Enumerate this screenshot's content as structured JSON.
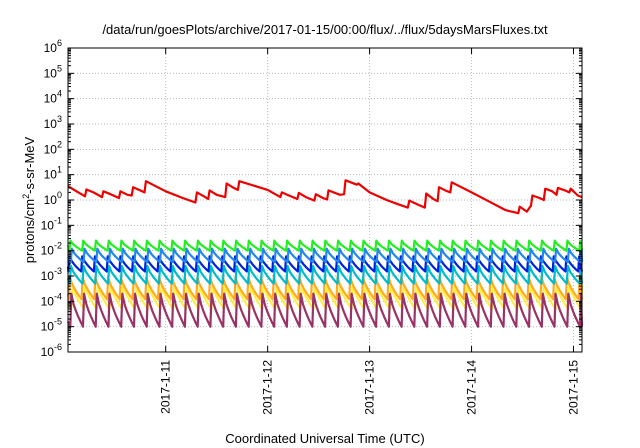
{
  "chart_data": {
    "type": "line",
    "title": "/data/run/goesPlots/archive/2017-01-15/00:00/flux/../flux/5daysMarsFluxes.txt",
    "xlabel": "Coordinated Universal Time (UTC)",
    "ylabel_main": "protons/cm",
    "ylabel_sup": "2",
    "ylabel_rest": "-s-sr-MeV",
    "yscale": "log",
    "ylim_exp": [
      -6,
      6
    ],
    "xlim": [
      "2017-01-10T01:00",
      "2017-01-15T02:00"
    ],
    "grid": true,
    "legend": "none",
    "ytick_base": "10",
    "yticks_exp": [
      "-6",
      "-5",
      "-4",
      "-3",
      "-2",
      "-1",
      "0",
      "1",
      "2",
      "3",
      "4",
      "5",
      "6"
    ],
    "xticks": [
      {
        "date": "2017-01-11T00:00",
        "label": "2017-1-11"
      },
      {
        "date": "2017-01-12T00:00",
        "label": "2017-1-12"
      },
      {
        "date": "2017-01-13T00:00",
        "label": "2017-1-13"
      },
      {
        "date": "2017-01-14T00:00",
        "label": "2017-1-14"
      },
      {
        "date": "2017-01-15T00:00",
        "label": "2017-1-15"
      }
    ],
    "sawtooth_period_hours": 3,
    "series": [
      {
        "color": "#ee0000",
        "points": [
          [
            "2017-01-10T01:00",
            3.5
          ],
          [
            "2017-01-10T03:00",
            2.2
          ],
          [
            "2017-01-10T05:00",
            1.4
          ],
          [
            "2017-01-10T05:20",
            2.6
          ],
          [
            "2017-01-10T07:00",
            2.0
          ],
          [
            "2017-01-10T09:00",
            1.3
          ],
          [
            "2017-01-10T09:20",
            2.2
          ],
          [
            "2017-01-10T11:00",
            1.7
          ],
          [
            "2017-01-10T13:00",
            1.2
          ],
          [
            "2017-01-10T13:20",
            2.2
          ],
          [
            "2017-01-10T15:00",
            1.6
          ],
          [
            "2017-01-10T16:00",
            1.5
          ],
          [
            "2017-01-10T16:20",
            3.2
          ],
          [
            "2017-01-10T18:00",
            2.4
          ],
          [
            "2017-01-10T19:00",
            2.0
          ],
          [
            "2017-01-10T19:20",
            5.5
          ],
          [
            "2017-01-11T00:00",
            2.2
          ],
          [
            "2017-01-11T04:00",
            1.2
          ],
          [
            "2017-01-11T07:00",
            0.8
          ],
          [
            "2017-01-11T07:20",
            2.0
          ],
          [
            "2017-01-11T09:00",
            1.4
          ],
          [
            "2017-01-11T10:00",
            1.1
          ],
          [
            "2017-01-11T10:20",
            2.4
          ],
          [
            "2017-01-11T12:00",
            1.6
          ],
          [
            "2017-01-11T14:00",
            1.3
          ],
          [
            "2017-01-11T14:20",
            4.5
          ],
          [
            "2017-01-11T16:00",
            3.0
          ],
          [
            "2017-01-11T17:00",
            2.5
          ],
          [
            "2017-01-11T17:20",
            5.5
          ],
          [
            "2017-01-12T00:00",
            2.5
          ],
          [
            "2017-01-12T03:00",
            1.3
          ],
          [
            "2017-01-12T03:20",
            2.0
          ],
          [
            "2017-01-12T05:00",
            1.5
          ],
          [
            "2017-01-12T07:00",
            1.1
          ],
          [
            "2017-01-12T07:20",
            1.9
          ],
          [
            "2017-01-12T09:00",
            1.3
          ],
          [
            "2017-01-12T11:00",
            0.95
          ],
          [
            "2017-01-12T11:20",
            1.7
          ],
          [
            "2017-01-12T13:00",
            1.2
          ],
          [
            "2017-01-12T14:00",
            1.05
          ],
          [
            "2017-01-12T14:20",
            2.4
          ],
          [
            "2017-01-12T17:00",
            1.6
          ],
          [
            "2017-01-12T18:00",
            1.7
          ],
          [
            "2017-01-12T18:20",
            6.0
          ],
          [
            "2017-01-12T21:00",
            4.0
          ],
          [
            "2017-01-12T21:20",
            4.5
          ],
          [
            "2017-01-13T00:00",
            2.0
          ],
          [
            "2017-01-13T04:00",
            1.0
          ],
          [
            "2017-01-13T07:00",
            0.65
          ],
          [
            "2017-01-13T09:00",
            0.5
          ],
          [
            "2017-01-13T09:20",
            0.95
          ],
          [
            "2017-01-13T11:00",
            0.7
          ],
          [
            "2017-01-13T13:00",
            0.5
          ],
          [
            "2017-01-13T13:20",
            1.8
          ],
          [
            "2017-01-13T15:00",
            1.1
          ],
          [
            "2017-01-13T16:00",
            0.9
          ],
          [
            "2017-01-13T16:20",
            3.2
          ],
          [
            "2017-01-13T18:00",
            2.3
          ],
          [
            "2017-01-13T19:00",
            2.0
          ],
          [
            "2017-01-13T19:20",
            5.0
          ],
          [
            "2017-01-14T00:00",
            2.0
          ],
          [
            "2017-01-14T04:00",
            0.9
          ],
          [
            "2017-01-14T08:00",
            0.4
          ],
          [
            "2017-01-14T11:00",
            0.3
          ],
          [
            "2017-01-14T11:20",
            0.55
          ],
          [
            "2017-01-14T13:00",
            0.35
          ],
          [
            "2017-01-14T14:00",
            0.6
          ],
          [
            "2017-01-14T14:20",
            1.5
          ],
          [
            "2017-01-14T16:00",
            1.2
          ],
          [
            "2017-01-14T17:00",
            1.0
          ],
          [
            "2017-01-14T17:20",
            2.8
          ],
          [
            "2017-01-14T19:00",
            2.2
          ],
          [
            "2017-01-14T20:00",
            1.6
          ],
          [
            "2017-01-14T20:20",
            3.0
          ],
          [
            "2017-01-14T22:00",
            2.4
          ],
          [
            "2017-01-14T23:00",
            2.0
          ],
          [
            "2017-01-14T23:20",
            2.8
          ],
          [
            "2017-01-15T01:00",
            1.5
          ],
          [
            "2017-01-15T02:00",
            1.3
          ]
        ]
      },
      {
        "color": "#22ee22",
        "peak": 0.025,
        "trough": 0.01
      },
      {
        "color": "#2288ee",
        "peak": 0.012,
        "trough": 0.0035
      },
      {
        "color": "#0022dd",
        "peak": 0.006,
        "trough": 0.0015
      },
      {
        "color": "#00bbcc",
        "peak": 0.0025,
        "trough": 0.0005
      },
      {
        "color": "#ffee44",
        "peak": 0.00045,
        "trough": 5e-05
      },
      {
        "color": "#ffaa22",
        "peak": 0.0009,
        "trough": 0.00012
      },
      {
        "color": "#993366",
        "peak": 0.0002,
        "trough": 1e-05
      }
    ]
  }
}
